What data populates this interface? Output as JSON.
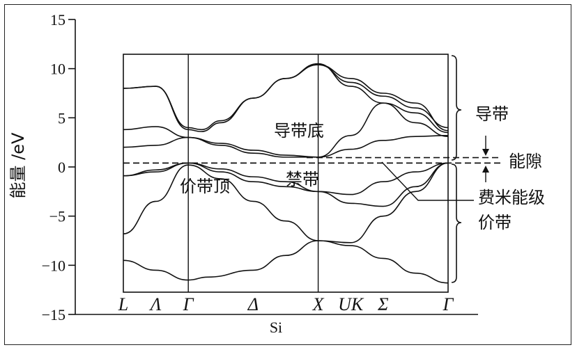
{
  "chart_data": {
    "type": "line",
    "title": "",
    "xlabel": "Si",
    "ylabel": "能量 /eV",
    "ylim": [
      -15,
      15
    ],
    "yticks": [
      15,
      10,
      5,
      0,
      -5,
      -10,
      -15
    ],
    "kpoints": [
      "L",
      "Λ",
      "Γ",
      "Δ",
      "X",
      "UK",
      "Σ",
      "Γ"
    ],
    "fermi_level": 0.4,
    "bands": [
      {
        "points": [
          [
            0,
            -9.5
          ],
          [
            0.5,
            -10.5
          ],
          [
            1,
            -11.5
          ],
          [
            1.3,
            -11.2
          ],
          [
            2,
            -10.5
          ],
          [
            2.5,
            -9
          ],
          [
            3,
            -7.5
          ],
          [
            3.5,
            -8
          ],
          [
            4,
            -9.3
          ],
          [
            4.5,
            -10.8
          ],
          [
            5,
            -11.8
          ]
        ]
      },
      {
        "points": [
          [
            0,
            -6.8
          ],
          [
            0.5,
            -3.5
          ],
          [
            1,
            0.2
          ],
          [
            1.5,
            -1.2
          ],
          [
            2,
            -3.5
          ],
          [
            2.5,
            -5.5
          ],
          [
            3,
            -7.5
          ],
          [
            3.5,
            -7.7
          ],
          [
            4,
            -5
          ],
          [
            4.5,
            -2.5
          ],
          [
            5,
            0.4
          ]
        ]
      },
      {
        "points": [
          [
            0,
            -0.9
          ],
          [
            0.5,
            -0.5
          ],
          [
            1,
            0.4
          ],
          [
            1.5,
            -0.5
          ],
          [
            2,
            -1.5
          ],
          [
            2.5,
            -2
          ],
          [
            3,
            -2.5
          ],
          [
            3.5,
            -3.7
          ],
          [
            4,
            -4
          ],
          [
            4.5,
            -2
          ],
          [
            5,
            0.4
          ]
        ]
      },
      {
        "points": [
          [
            0,
            -0.9
          ],
          [
            0.5,
            -0.3
          ],
          [
            1,
            0.4
          ],
          [
            1.5,
            -0.2
          ],
          [
            2,
            -1
          ],
          [
            2.5,
            -1.5
          ],
          [
            3,
            -2.5
          ],
          [
            3.5,
            -2.8
          ],
          [
            4,
            -1.5
          ],
          [
            4.5,
            -0.5
          ],
          [
            5,
            0.4
          ]
        ]
      },
      {
        "points": [
          [
            0,
            2
          ],
          [
            0.5,
            2.2
          ],
          [
            1,
            3
          ],
          [
            1.5,
            2.4
          ],
          [
            2,
            1.7
          ],
          [
            2.5,
            1.2
          ],
          [
            3,
            1
          ],
          [
            3.5,
            1.8
          ],
          [
            4,
            2.7
          ],
          [
            4.5,
            3.1
          ],
          [
            5,
            3.2
          ]
        ]
      },
      {
        "points": [
          [
            0,
            3.8
          ],
          [
            0.5,
            4.1
          ],
          [
            1,
            3
          ],
          [
            1.5,
            2.2
          ],
          [
            2,
            1.4
          ],
          [
            2.5,
            1
          ],
          [
            3,
            1
          ],
          [
            3.5,
            3.2
          ],
          [
            4,
            6.5
          ],
          [
            4.5,
            4.5
          ],
          [
            5,
            3.1
          ]
        ]
      },
      {
        "points": [
          [
            0,
            8
          ],
          [
            0.5,
            8.2
          ],
          [
            1,
            4
          ],
          [
            1.2,
            3.8
          ],
          [
            1.5,
            4.7
          ],
          [
            2,
            7
          ],
          [
            2.5,
            9
          ],
          [
            3,
            10.5
          ],
          [
            3.5,
            8.2
          ],
          [
            4,
            6.5
          ],
          [
            4.5,
            5.5
          ],
          [
            5,
            3.5
          ]
        ]
      },
      {
        "points": [
          [
            0,
            8
          ],
          [
            0.5,
            8.2
          ],
          [
            1,
            3.8
          ],
          [
            1.2,
            3.6
          ],
          [
            1.5,
            4.5
          ],
          [
            2,
            7
          ],
          [
            2.5,
            9
          ],
          [
            3,
            10.4
          ],
          [
            3.5,
            8.6
          ],
          [
            4,
            7.2
          ],
          [
            4.5,
            6
          ],
          [
            5,
            4
          ]
        ]
      },
      {
        "points": [
          [
            3,
            10.4
          ],
          [
            3.5,
            9
          ],
          [
            4,
            7.5
          ],
          [
            4.5,
            6.5
          ],
          [
            5,
            3.7
          ]
        ]
      }
    ],
    "annotations": [
      {
        "text": "导带底"
      },
      {
        "text": "禁带"
      },
      {
        "text": "价带顶"
      },
      {
        "text": "导带"
      },
      {
        "text": "能隙"
      },
      {
        "text": "费米能级"
      },
      {
        "text": "价带"
      }
    ]
  }
}
